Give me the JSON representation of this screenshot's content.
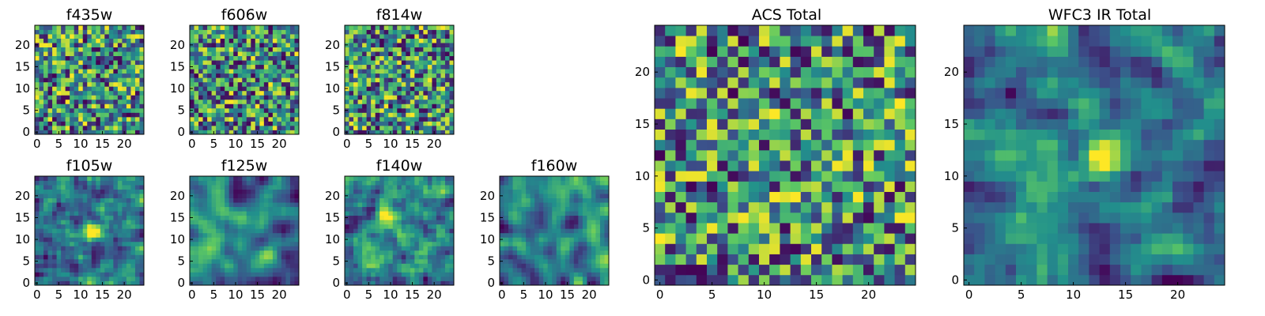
{
  "figure": {
    "colormap": "viridis",
    "palette": [
      "#440154",
      "#3b528b",
      "#21918c",
      "#5ec962",
      "#fde725"
    ]
  },
  "chart_data": [
    {
      "type": "heatmap",
      "title": "f435w",
      "size": [
        25,
        25
      ],
      "xlim": [
        0,
        24
      ],
      "ylim": [
        0,
        24
      ],
      "xticks": [
        0,
        5,
        10,
        15,
        20
      ],
      "yticks": [
        0,
        5,
        10,
        15,
        20
      ],
      "texture": "noise",
      "seed": 11
    },
    {
      "type": "heatmap",
      "title": "f606w",
      "size": [
        25,
        25
      ],
      "xlim": [
        0,
        24
      ],
      "ylim": [
        0,
        24
      ],
      "xticks": [
        0,
        5,
        10,
        15,
        20
      ],
      "yticks": [
        0,
        5,
        10,
        15,
        20
      ],
      "texture": "noise",
      "seed": 23
    },
    {
      "type": "heatmap",
      "title": "f814w",
      "size": [
        25,
        25
      ],
      "xlim": [
        0,
        24
      ],
      "ylim": [
        0,
        24
      ],
      "xticks": [
        0,
        5,
        10,
        15,
        20
      ],
      "yticks": [
        0,
        5,
        10,
        15,
        20
      ],
      "texture": "noise",
      "seed": 37
    },
    {
      "type": "heatmap",
      "title": "f105w",
      "size": [
        25,
        25
      ],
      "xlim": [
        0,
        24
      ],
      "ylim": [
        0,
        24
      ],
      "xticks": [
        0,
        5,
        10,
        15,
        20
      ],
      "yticks": [
        0,
        5,
        10,
        15,
        20
      ],
      "texture": "blob",
      "source_center": [
        13,
        12
      ],
      "seed": 41
    },
    {
      "type": "heatmap",
      "title": "f125w",
      "size": [
        25,
        25
      ],
      "xlim": [
        0,
        24
      ],
      "ylim": [
        0,
        24
      ],
      "xticks": [
        0,
        5,
        10,
        15,
        20
      ],
      "yticks": [
        0,
        5,
        10,
        15,
        20
      ],
      "texture": "smooth",
      "seed": 53
    },
    {
      "type": "heatmap",
      "title": "f140w",
      "size": [
        25,
        25
      ],
      "xlim": [
        0,
        24
      ],
      "ylim": [
        0,
        24
      ],
      "xticks": [
        0,
        5,
        10,
        15,
        20
      ],
      "yticks": [
        0,
        5,
        10,
        15,
        20
      ],
      "texture": "blob",
      "source_center": [
        9,
        15
      ],
      "seed": 67
    },
    {
      "type": "heatmap",
      "title": "f160w",
      "size": [
        25,
        25
      ],
      "xlim": [
        0,
        24
      ],
      "ylim": [
        0,
        24
      ],
      "xticks": [
        0,
        5,
        10,
        15,
        20
      ],
      "yticks": [
        0,
        5,
        10,
        15,
        20
      ],
      "texture": "smooth",
      "seed": 79
    },
    {
      "type": "heatmap",
      "title": "ACS Total",
      "size": [
        25,
        25
      ],
      "xlim": [
        0,
        24
      ],
      "ylim": [
        0,
        24
      ],
      "xticks": [
        0,
        5,
        10,
        15,
        20
      ],
      "yticks": [
        0,
        5,
        10,
        15,
        20
      ],
      "texture": "noise",
      "seed": 97
    },
    {
      "type": "heatmap",
      "title": "WFC3 IR Total",
      "size": [
        25,
        25
      ],
      "xlim": [
        0,
        24
      ],
      "ylim": [
        0,
        24
      ],
      "xticks": [
        0,
        5,
        10,
        15,
        20
      ],
      "yticks": [
        0,
        5,
        10,
        15,
        20
      ],
      "texture": "blob",
      "source_center": [
        13,
        12
      ],
      "seed": 101
    }
  ]
}
